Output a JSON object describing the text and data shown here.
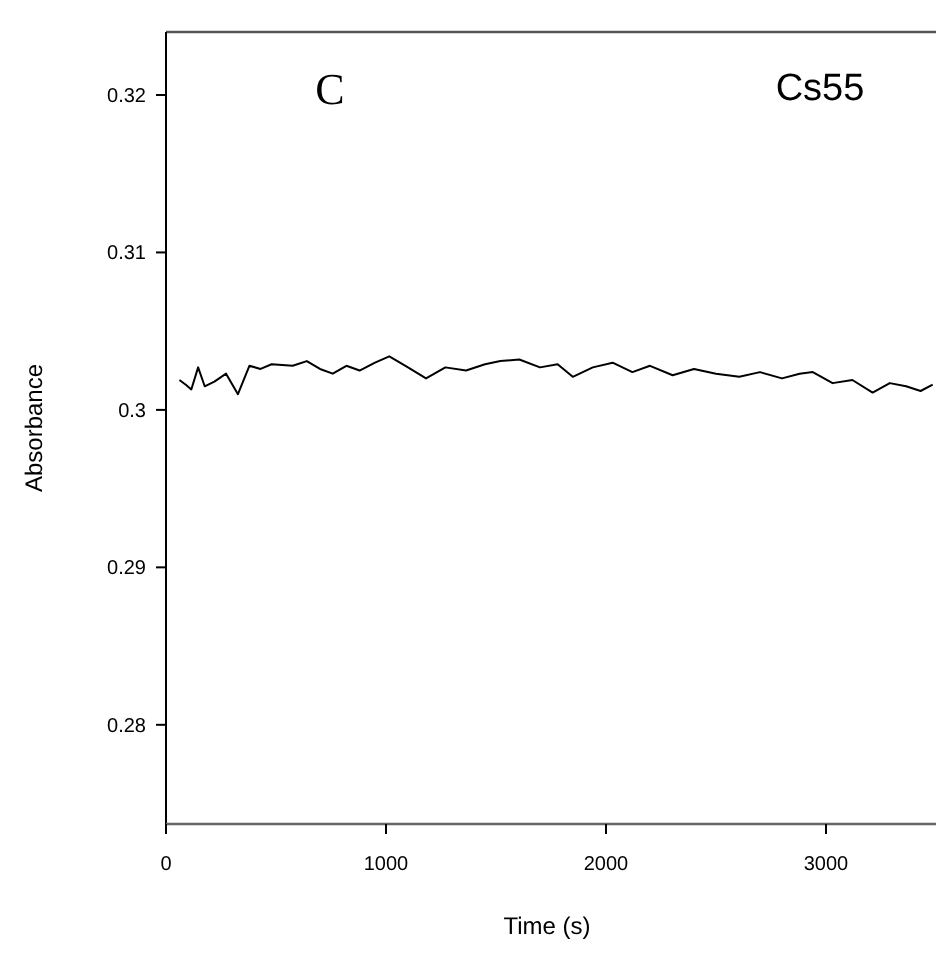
{
  "chart_data": {
    "type": "line",
    "xlabel": "Time (s)",
    "ylabel": "Absorbance",
    "annotations": [
      "C",
      "Cs55"
    ],
    "x": [
      61,
      90,
      115,
      146,
      176,
      220,
      273,
      327,
      379,
      430,
      480,
      576,
      640,
      700,
      758,
      820,
      880,
      950,
      1015,
      1100,
      1182,
      1270,
      1364,
      1450,
      1520,
      1606,
      1700,
      1780,
      1849,
      1940,
      2030,
      2120,
      2200,
      2303,
      2400,
      2500,
      2606,
      2700,
      2800,
      2880,
      2940,
      3030,
      3120,
      3212,
      3290,
      3364,
      3430,
      3485
    ],
    "series": [
      {
        "color": "#000000",
        "values": [
          0.3019,
          0.3016,
          0.3013,
          0.3027,
          0.3015,
          0.3018,
          0.3023,
          0.301,
          0.3028,
          0.3026,
          0.3029,
          0.3028,
          0.3031,
          0.3026,
          0.3023,
          0.3028,
          0.3025,
          0.303,
          0.3034,
          0.3027,
          0.302,
          0.3027,
          0.3025,
          0.3029,
          0.3031,
          0.3032,
          0.3027,
          0.3029,
          0.3021,
          0.3027,
          0.303,
          0.3024,
          0.3028,
          0.3022,
          0.3026,
          0.3023,
          0.3021,
          0.3024,
          0.302,
          0.3023,
          0.3024,
          0.3017,
          0.3019,
          0.3011,
          0.3017,
          0.3015,
          0.3012,
          0.3016
        ]
      }
    ],
    "xlim": [
      0,
      3500
    ],
    "ylim": [
      0.2737,
      0.324
    ],
    "xticks": [
      0,
      1000,
      2000,
      3000
    ],
    "yticks": [
      0.28,
      0.29,
      0.3,
      0.31,
      0.32
    ],
    "grid": false,
    "marker": "none",
    "line_style": "solid"
  }
}
